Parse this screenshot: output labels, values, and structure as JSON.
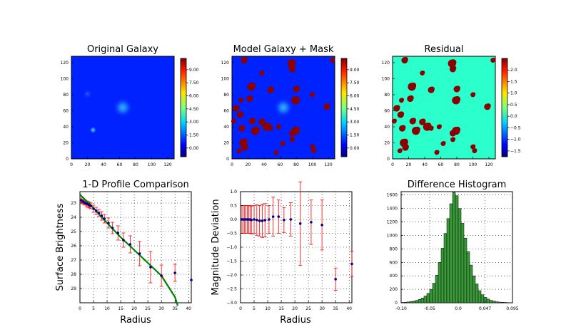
{
  "colors": {
    "blue_bg": "#0022ff",
    "residual_bg": "#2bffcc",
    "mask": "#8b0000",
    "fit_line": "#008000",
    "error_bar": "#ff0000",
    "points": "#00008b",
    "hist_fill": "#3a9a3a"
  },
  "chart_data": [
    {
      "type": "heatmap",
      "title": "Original Galaxy",
      "x_ticks": [
        "0",
        "20",
        "40",
        "60",
        "80",
        "100",
        "120"
      ],
      "y_ticks": [
        "0",
        "20",
        "40",
        "60",
        "80",
        "100",
        "120"
      ],
      "xlim": [
        0,
        128
      ],
      "ylim": [
        0,
        128
      ],
      "colorbar_ticks": [
        "0.00",
        "1.50",
        "3.00",
        "4.50",
        "6.00",
        "7.50",
        "9.00"
      ],
      "colorbar_range": [
        -1,
        10.3
      ],
      "colormap": "jet",
      "sources": [
        {
          "x": 64,
          "y": 64,
          "level": 2.2
        },
        {
          "x": 27,
          "y": 36,
          "level": 2.0
        },
        {
          "x": 20,
          "y": 81,
          "level": 0.8
        }
      ],
      "mask_blobs": []
    },
    {
      "type": "heatmap",
      "title": "Model Galaxy + Mask",
      "x_ticks": [
        "0",
        "20",
        "40",
        "60",
        "80",
        "100",
        "120"
      ],
      "y_ticks": [
        "0",
        "20",
        "40",
        "60",
        "80",
        "100",
        "120"
      ],
      "xlim": [
        0,
        128
      ],
      "ylim": [
        0,
        128
      ],
      "colorbar_ticks": [
        "0.00",
        "1.50",
        "3.00",
        "4.50",
        "6.00",
        "7.50",
        "9.00"
      ],
      "colorbar_range": [
        -1,
        10.3
      ],
      "colormap": "jet",
      "sources": [
        {
          "x": 64,
          "y": 64,
          "level": 2.2
        }
      ],
      "mask_blobs": [
        [
          15,
          123,
          4
        ],
        [
          74,
          119,
          5
        ],
        [
          75,
          112,
          4
        ],
        [
          37,
          107,
          3
        ],
        [
          125,
          123,
          3
        ],
        [
          24,
          90,
          5
        ],
        [
          48,
          86,
          4
        ],
        [
          80,
          87,
          4
        ],
        [
          11,
          73,
          3
        ],
        [
          79,
          73,
          5
        ],
        [
          22,
          75,
          4
        ],
        [
          100,
          80,
          3
        ],
        [
          118,
          65,
          4
        ],
        [
          5,
          63,
          4
        ],
        [
          10,
          55,
          4
        ],
        [
          2,
          47,
          3
        ],
        [
          25,
          47,
          4
        ],
        [
          37,
          46,
          4
        ],
        [
          48,
          38,
          3
        ],
        [
          43,
          40,
          5
        ],
        [
          12,
          38,
          4
        ],
        [
          29,
          35,
          5
        ],
        [
          58,
          40,
          3
        ],
        [
          79,
          35,
          5
        ],
        [
          75,
          32,
          4
        ],
        [
          14,
          20,
          5
        ],
        [
          16,
          14,
          4
        ],
        [
          75,
          24,
          3
        ],
        [
          63,
          19,
          3
        ],
        [
          100,
          15,
          3
        ],
        [
          9,
          10,
          3
        ],
        [
          55,
          8,
          3
        ],
        [
          102,
          10,
          3
        ]
      ]
    },
    {
      "type": "heatmap",
      "title": "Residual",
      "x_ticks": [
        "0",
        "20",
        "40",
        "60",
        "80",
        "100",
        "120"
      ],
      "y_ticks": [
        "0",
        "20",
        "40",
        "60",
        "80",
        "100",
        "120"
      ],
      "xlim": [
        0,
        128
      ],
      "ylim": [
        0,
        128
      ],
      "colorbar_ticks": [
        "−1.5",
        "−1.0",
        "−0.5",
        "0.0",
        "0.5",
        "1.0",
        "1.5",
        "2.0"
      ],
      "colorbar_range": [
        -1.75,
        2.5
      ],
      "colormap": "jet",
      "sources": [],
      "mask_blobs": [
        [
          15,
          123,
          4
        ],
        [
          74,
          119,
          5
        ],
        [
          75,
          112,
          4
        ],
        [
          37,
          107,
          3
        ],
        [
          125,
          123,
          3
        ],
        [
          24,
          90,
          5
        ],
        [
          48,
          86,
          4
        ],
        [
          80,
          87,
          4
        ],
        [
          11,
          73,
          3
        ],
        [
          79,
          73,
          5
        ],
        [
          22,
          75,
          4
        ],
        [
          100,
          80,
          3
        ],
        [
          118,
          65,
          4
        ],
        [
          5,
          63,
          4
        ],
        [
          10,
          55,
          4
        ],
        [
          2,
          47,
          3
        ],
        [
          25,
          47,
          4
        ],
        [
          37,
          46,
          4
        ],
        [
          48,
          38,
          3
        ],
        [
          43,
          40,
          5
        ],
        [
          12,
          38,
          4
        ],
        [
          29,
          35,
          5
        ],
        [
          58,
          40,
          3
        ],
        [
          79,
          35,
          5
        ],
        [
          75,
          32,
          4
        ],
        [
          14,
          20,
          5
        ],
        [
          16,
          14,
          4
        ],
        [
          75,
          24,
          3
        ],
        [
          63,
          19,
          3
        ],
        [
          100,
          15,
          3
        ],
        [
          9,
          10,
          3
        ],
        [
          55,
          8,
          3
        ],
        [
          102,
          10,
          3
        ]
      ]
    },
    {
      "type": "scatter",
      "title": "1-D Profile Comparison",
      "xlabel": "Radius",
      "ylabel": "Surface Brightness",
      "xlim": [
        0,
        41
      ],
      "ylim": [
        30,
        22.2
      ],
      "x_ticks": [
        0,
        5,
        10,
        15,
        20,
        25,
        30,
        35,
        40
      ],
      "y_ticks": [
        23,
        24,
        25,
        26,
        27,
        28,
        29
      ],
      "grid": true,
      "series": [
        {
          "x": [
            0.5,
            1.0,
            1.5,
            2.0,
            2.5,
            3.0,
            3.5,
            4.0,
            5.0,
            6.0,
            7.0,
            8.0,
            9.0,
            10.5,
            12.0,
            14.0,
            16.0,
            18.5,
            22.0,
            26.0,
            30.0,
            35.0,
            41.0
          ],
          "y": [
            22.8,
            22.9,
            22.95,
            23.0,
            23.05,
            23.1,
            23.15,
            23.2,
            23.4,
            23.55,
            23.7,
            23.9,
            24.1,
            24.4,
            24.75,
            25.1,
            25.6,
            25.9,
            26.55,
            27.5,
            28.1,
            27.9,
            28.4
          ],
          "err": [
            0.15,
            0.15,
            0.15,
            0.15,
            0.2,
            0.2,
            0.2,
            0.2,
            0.25,
            0.25,
            0.25,
            0.3,
            0.3,
            0.35,
            0.4,
            0.5,
            0.5,
            0.6,
            0.85,
            1.1,
            0.75,
            0.6,
            0.0
          ]
        }
      ],
      "model": {
        "x": [
          0,
          5,
          10,
          15,
          20,
          25,
          30,
          35,
          36
        ],
        "y": [
          22.4,
          23.35,
          24.4,
          25.4,
          26.3,
          27.2,
          28.1,
          29.6,
          30.2
        ]
      }
    },
    {
      "type": "scatter",
      "xlabel": "Radius",
      "ylabel": "Magnitude Deviation",
      "xlim": [
        0,
        41
      ],
      "ylim": [
        -3.0,
        1.0
      ],
      "x_ticks": [
        0,
        5,
        10,
        15,
        20,
        25,
        30,
        35,
        40
      ],
      "y_ticks": [
        1.0,
        0.5,
        0.0,
        -0.5,
        -1.0,
        -1.5,
        -2.0,
        -2.5,
        -3.0
      ],
      "y_tick_labels": [
        "1.0",
        "0.5",
        "0.0",
        "−0.5",
        "−1.0",
        "−1.5",
        "−2.0",
        "−2.5",
        "−3.0"
      ],
      "grid": true,
      "series": [
        {
          "x": [
            0.5,
            1.0,
            1.5,
            2.0,
            2.5,
            3.0,
            3.5,
            4.0,
            5.0,
            6.0,
            7.0,
            8.0,
            9.0,
            10.5,
            12.0,
            14.0,
            16.0,
            18.5,
            22.0,
            26.0,
            30.0,
            35.0,
            41.0
          ],
          "y": [
            0.0,
            0.0,
            0.0,
            0.0,
            0.0,
            0.0,
            0.0,
            -0.02,
            0.0,
            -0.02,
            -0.05,
            -0.05,
            -0.03,
            0.0,
            0.1,
            0.1,
            -0.02,
            0.0,
            -0.15,
            -0.1,
            -0.2,
            -2.15,
            -1.6
          ],
          "err": [
            0.5,
            0.5,
            0.5,
            0.5,
            0.5,
            0.5,
            0.5,
            0.5,
            0.5,
            0.55,
            0.55,
            0.6,
            0.6,
            0.5,
            0.7,
            0.6,
            0.45,
            0.6,
            1.5,
            0.8,
            0.9,
            0.4,
            0.45
          ]
        }
      ]
    },
    {
      "type": "bar",
      "title": "Difference Histogram",
      "xlim": [
        -0.1,
        0.095
      ],
      "ylim": [
        0,
        1650
      ],
      "x_ticks": [
        -0.1,
        -0.05,
        0.0,
        0.047,
        0.095
      ],
      "x_tick_labels": [
        "-0.10",
        "-0.05",
        "0.0",
        "0.047",
        "0.095"
      ],
      "y_ticks": [
        0,
        200,
        400,
        600,
        800,
        1000,
        1200,
        1400,
        1600
      ],
      "grid": true,
      "bin_edges": [
        -0.1,
        -0.095,
        -0.09,
        -0.085,
        -0.08,
        -0.075,
        -0.07,
        -0.065,
        -0.06,
        -0.055,
        -0.05,
        -0.045,
        -0.04,
        -0.035,
        -0.03,
        -0.025,
        -0.02,
        -0.015,
        -0.01,
        -0.005,
        0.0,
        0.005,
        0.01,
        0.015,
        0.02,
        0.025,
        0.03,
        0.035,
        0.04,
        0.045,
        0.05,
        0.055,
        0.06,
        0.065,
        0.07,
        0.075,
        0.08,
        0.085,
        0.09,
        0.095
      ],
      "counts": [
        5,
        8,
        12,
        18,
        25,
        35,
        50,
        70,
        100,
        140,
        200,
        290,
        410,
        600,
        810,
        1030,
        1250,
        1470,
        1640,
        1590,
        1400,
        1180,
        960,
        760,
        560,
        400,
        280,
        180,
        120,
        80,
        55,
        35,
        25,
        15,
        10,
        8,
        5,
        3,
        2
      ]
    }
  ]
}
